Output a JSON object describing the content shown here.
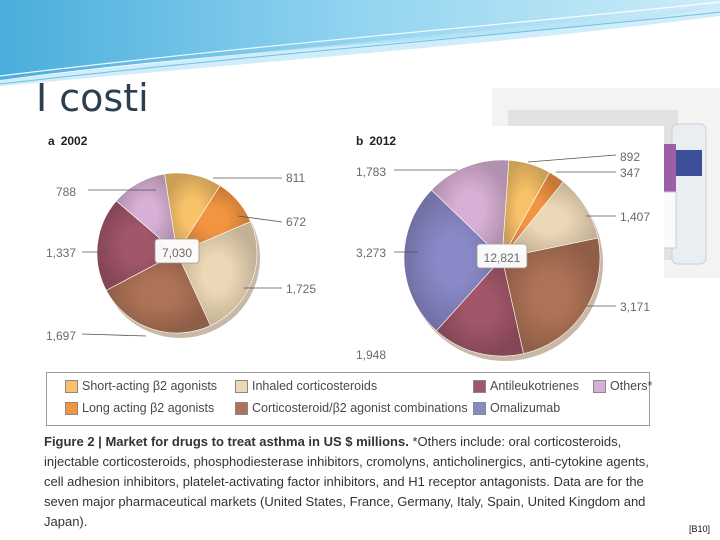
{
  "slide": {
    "title": "I costi",
    "reference": "[B10]"
  },
  "colors": {
    "short_acting": "#f8c268",
    "inhaled_cs": "#ecd8b6",
    "antileukotrienes": "#a2566a",
    "others": "#d9b0d5",
    "long_acting": "#f39441",
    "combinations": "#ae7356",
    "omalizumab": "#8a89c8",
    "banner": "#4bb3e0"
  },
  "chart_data": [
    {
      "type": "pie",
      "panel": "a",
      "title": "2002",
      "total": "7,030",
      "slices": [
        {
          "category": "Short-acting β2 agonists",
          "value": 811,
          "label": "811",
          "color": "#f8c268"
        },
        {
          "category": "Long acting β2 agonists",
          "value": 672,
          "label": "672",
          "color": "#f39441"
        },
        {
          "category": "Inhaled corticosteroids",
          "value": 1725,
          "label": "1,725",
          "color": "#ecd8b6"
        },
        {
          "category": "Corticosteroid/β2 agonist combinations",
          "value": 1697,
          "label": "1,697",
          "color": "#ae7356"
        },
        {
          "category": "Antileukotrienes",
          "value": 1337,
          "label": "1,337",
          "color": "#a2566a"
        },
        {
          "category": "Others*",
          "value": 788,
          "label": "788",
          "color": "#d9b0d5"
        }
      ]
    },
    {
      "type": "pie",
      "panel": "b",
      "title": "2012",
      "total": "12,821",
      "slices": [
        {
          "category": "Short-acting β2 agonists",
          "value": 892,
          "label": "892",
          "color": "#f8c268"
        },
        {
          "category": "Long acting β2 agonists",
          "value": 347,
          "label": "347",
          "color": "#f39441"
        },
        {
          "category": "Inhaled corticosteroids",
          "value": 1407,
          "label": "1,407",
          "color": "#ecd8b6"
        },
        {
          "category": "Corticosteroid/β2 agonist combinations",
          "value": 3171,
          "label": "3,171",
          "color": "#ae7356"
        },
        {
          "category": "Antileukotrienes",
          "value": 1948,
          "label": "1,948",
          "color": "#a2566a"
        },
        {
          "category": "Omalizumab",
          "value": 3273,
          "label": "3,273",
          "color": "#8a89c8"
        },
        {
          "category": "Others*",
          "value": 1783,
          "label": "1,783",
          "color": "#d9b0d5"
        }
      ]
    }
  ],
  "legend": [
    {
      "label": "Short-acting β2 agonists",
      "color": "#f8c268"
    },
    {
      "label": "Inhaled corticosteroids",
      "color": "#ecd8b6"
    },
    {
      "label": "Antileukotrienes",
      "color": "#a2566a"
    },
    {
      "label": "Others*",
      "color": "#d9b0d5"
    },
    {
      "label": "Long acting β2 agonists",
      "color": "#f39441"
    },
    {
      "label": "Corticosteroid/β2 agonist combinations",
      "color": "#ae7356"
    },
    {
      "label": "Omalizumab",
      "color": "#8a89c8"
    }
  ],
  "caption": {
    "prefix": "Figure 2 | ",
    "bold": "Market for drugs to treat asthma in US $ millions.",
    "text": " *Others include: oral corticosteroids, injectable corticosteroids, phosphodiesterase inhibitors, cromolyns, anticholinergics, anti-cytokine agents, cell adhesion inhibitors, platelet-activating factor inhibitors, and H1 receptor antagonists. Data are for the seven major pharmaceutical markets (United States, France, Germany, Italy, Spain, United Kingdom and Japan)."
  }
}
